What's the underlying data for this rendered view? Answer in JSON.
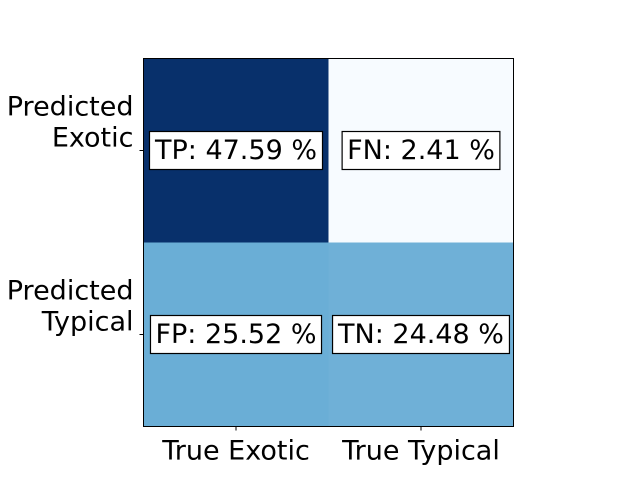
{
  "chart_data": {
    "type": "heatmap",
    "title": "",
    "xlabel": "",
    "ylabel": "",
    "x_categories": [
      "True Exotic",
      "True Typical"
    ],
    "y_categories": [
      [
        "Predicted",
        "Exotic"
      ],
      [
        "Predicted",
        "Typical"
      ]
    ],
    "cells": [
      [
        {
          "label": "TP: 47.59 %",
          "value": 47.59,
          "color": "#08306b"
        },
        {
          "label": "FN: 2.41 %",
          "value": 2.41,
          "color": "#f7fbff"
        }
      ],
      [
        {
          "label": "FP: 25.52 %",
          "value": 25.52,
          "color": "#6aaed6"
        },
        {
          "label": "TN: 24.48 %",
          "value": 24.48,
          "color": "#6fb0d7"
        }
      ]
    ],
    "colormap": "Blues",
    "grid": false,
    "legend": "none"
  }
}
